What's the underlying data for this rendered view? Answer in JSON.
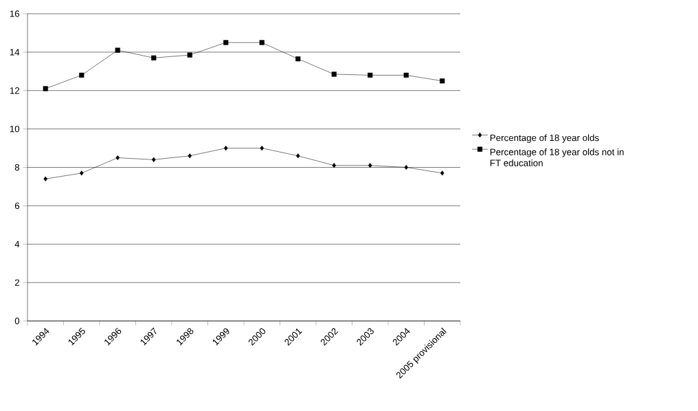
{
  "chart_data": {
    "type": "line",
    "categories": [
      "1994",
      "1995",
      "1996",
      "1997",
      "1998",
      "1999",
      "2000",
      "2001",
      "2002",
      "2003",
      "2004",
      "2005 provisional"
    ],
    "series": [
      {
        "name": "Percentage of 18 year olds",
        "color": "#000000",
        "marker": "diamond",
        "values": [
          7.4,
          7.7,
          8.5,
          8.4,
          8.6,
          9.0,
          9.0,
          8.6,
          8.1,
          8.1,
          8.0,
          7.7
        ]
      },
      {
        "name": "Percentage of 18 year olds not in FT education",
        "color": "#000000",
        "marker": "square",
        "values": [
          12.1,
          12.8,
          14.1,
          13.7,
          13.85,
          14.5,
          14.5,
          13.65,
          12.85,
          12.8,
          12.8,
          12.5
        ]
      }
    ],
    "ylim": [
      0,
      16
    ],
    "yticks": [
      0,
      2,
      4,
      6,
      8,
      10,
      12,
      14,
      16
    ],
    "grid": "y",
    "legend": "right",
    "line_style": "solid"
  }
}
